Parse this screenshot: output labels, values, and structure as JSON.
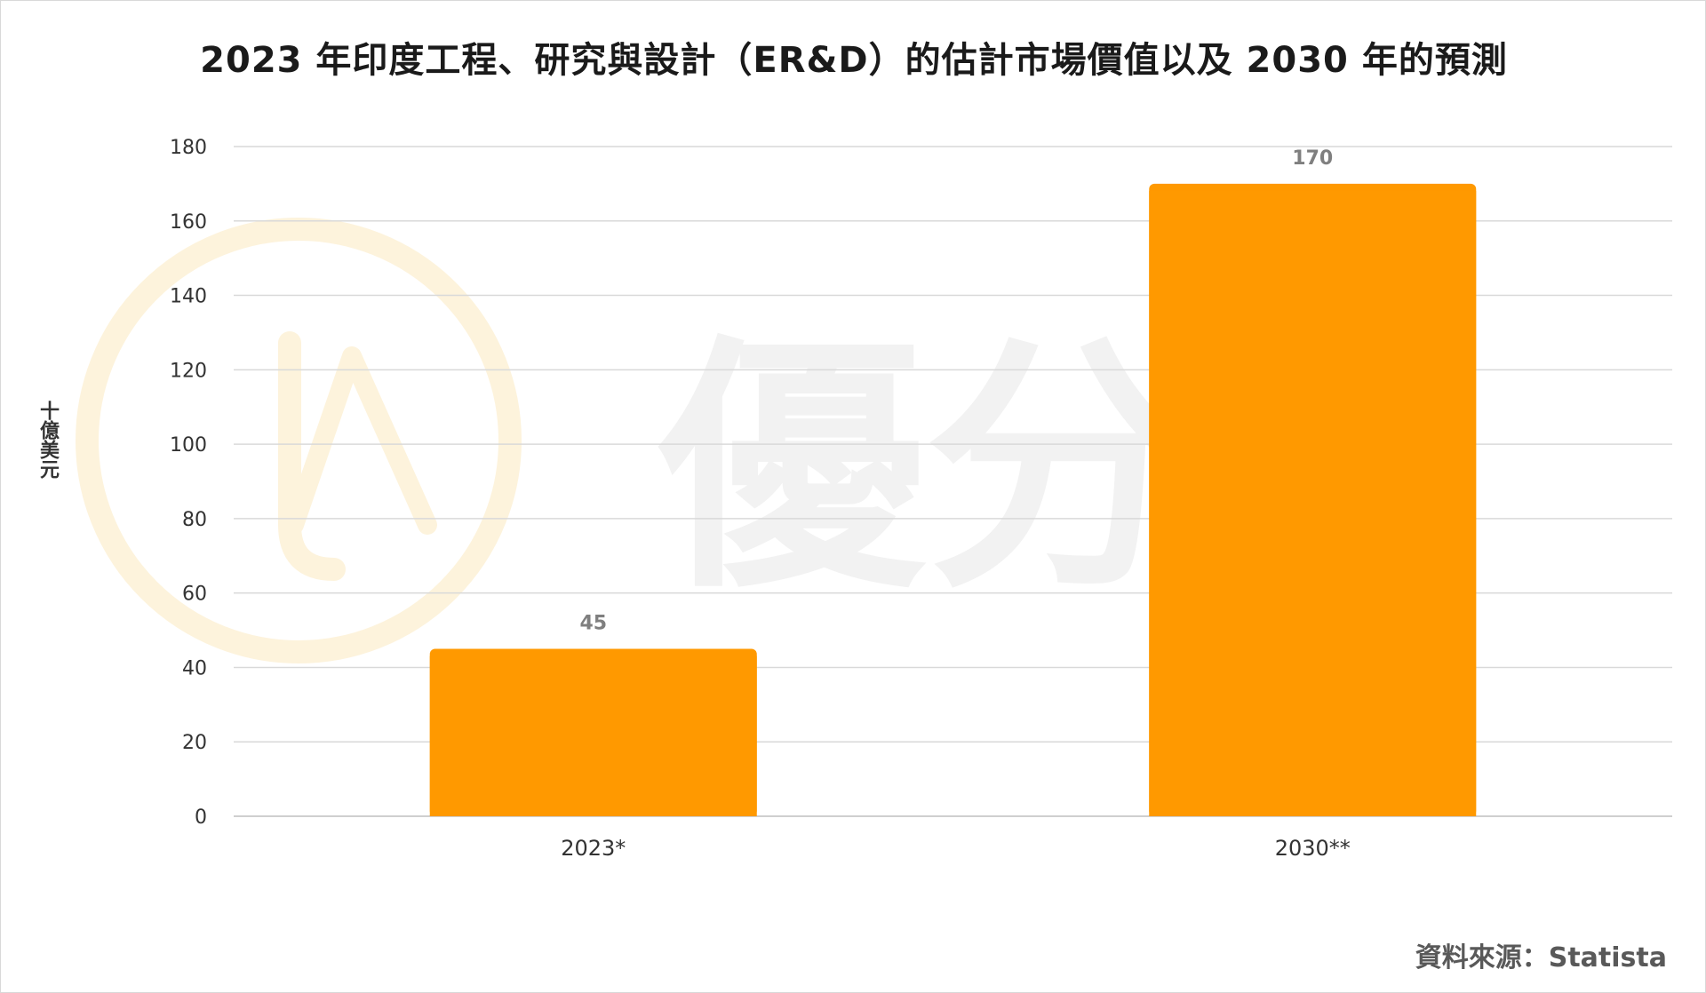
{
  "chart_data": {
    "type": "bar",
    "title": "2023 年印度工程、研究與設計（ER&D）的估計市場價值以及 2030 年的預測",
    "xlabel": "",
    "ylabel": "十億美元",
    "categories": [
      "2023*",
      "2030**"
    ],
    "values": [
      45,
      170
    ],
    "ylim": [
      0,
      180
    ],
    "yticks": [
      0,
      20,
      40,
      60,
      80,
      100,
      120,
      140,
      160,
      180
    ],
    "bar_color": "#FF9900",
    "data_labels": true,
    "grid": true,
    "legend": "none"
  },
  "source": "資料來源：Statista",
  "watermark": {
    "text": "優分析",
    "color": "#f2f2f2",
    "logo_color": "#fdf3dc"
  }
}
